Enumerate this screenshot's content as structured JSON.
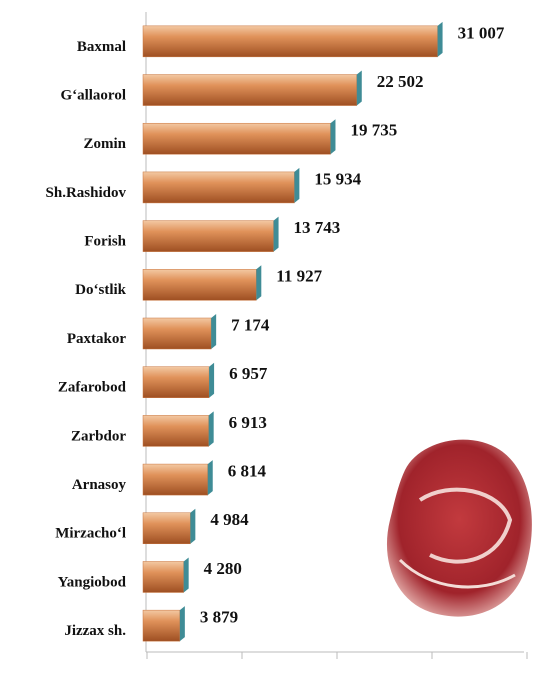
{
  "chart_data": {
    "type": "bar",
    "orientation": "horizontal",
    "categories": [
      "Baxmal",
      "G‘allaorol",
      "Zomin",
      "Sh.Rashidov",
      "Forish",
      "Do‘stlik",
      "Paxtakor",
      "Zafarobod",
      "Zarbdor",
      "Arnasoy",
      "Mirzacho‘l",
      "Yangiobod",
      "Jizzax sh."
    ],
    "values": [
      31007,
      22502,
      19735,
      15934,
      13743,
      11927,
      7174,
      6957,
      6913,
      6814,
      4984,
      4280,
      3879
    ],
    "value_labels": [
      "31 007",
      "22 502",
      "19 735",
      "15 934",
      "13 743",
      "11 927",
      "7 174",
      "6 957",
      "6 913",
      "6 814",
      "4 984",
      "4 280",
      "3 879"
    ],
    "color": "#c8743e",
    "xlim": [
      0,
      40000
    ],
    "xticks": [
      0,
      10000,
      20000,
      30000,
      40000
    ]
  }
}
